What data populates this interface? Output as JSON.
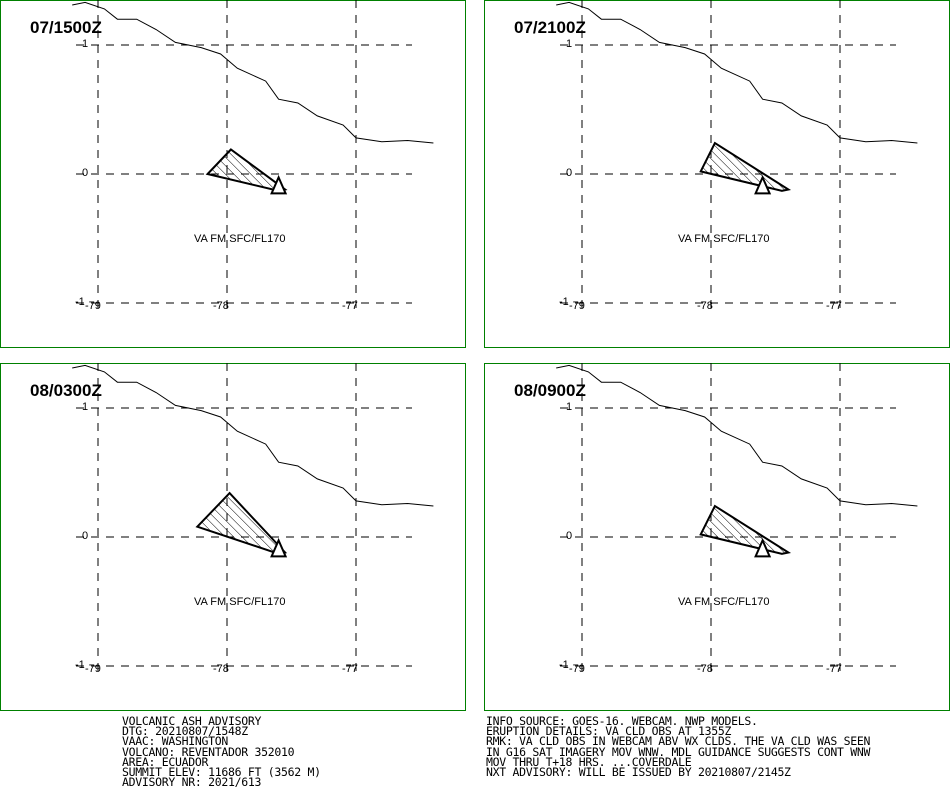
{
  "panels": [
    {
      "time": "07/1500Z",
      "label": "VA FM SFC/FL170"
    },
    {
      "time": "07/2100Z",
      "label": "VA FM SFC/FL170"
    },
    {
      "time": "08/0300Z",
      "label": "VA FM SFC/FL170"
    },
    {
      "time": "08/0900Z",
      "label": "VA FM SFC/FL170"
    }
  ],
  "axes": {
    "x_ticks": [
      "-79",
      "-78",
      "-77"
    ],
    "y_ticks": [
      "1",
      "0",
      "-1"
    ]
  },
  "cloud_polygons": [
    [
      [
        -78.15,
        0.0
      ],
      [
        -77.97,
        0.19
      ],
      [
        -77.55,
        -0.12
      ],
      [
        -77.6,
        -0.13
      ]
    ],
    [
      [
        -78.08,
        0.02
      ],
      [
        -77.97,
        0.24
      ],
      [
        -77.4,
        -0.12
      ],
      [
        -77.45,
        -0.13
      ]
    ],
    [
      [
        -78.23,
        0.08
      ],
      [
        -77.98,
        0.34
      ],
      [
        -77.55,
        -0.12
      ],
      [
        -77.6,
        -0.13
      ]
    ],
    [
      [
        -78.08,
        0.02
      ],
      [
        -77.97,
        0.24
      ],
      [
        -77.4,
        -0.12
      ],
      [
        -77.45,
        -0.13
      ]
    ]
  ],
  "volcano_marker": [
    -77.6,
    -0.08
  ],
  "coastline": [
    [
      -79.2,
      1.31
    ],
    [
      -79.1,
      1.33
    ],
    [
      -78.95,
      1.28
    ],
    [
      -78.85,
      1.2
    ],
    [
      -78.7,
      1.2
    ],
    [
      -78.55,
      1.12
    ],
    [
      -78.4,
      1.02
    ],
    [
      -78.2,
      0.98
    ],
    [
      -78.05,
      0.93
    ],
    [
      -77.92,
      0.82
    ],
    [
      -77.7,
      0.72
    ],
    [
      -77.6,
      0.58
    ],
    [
      -77.45,
      0.55
    ],
    [
      -77.3,
      0.45
    ],
    [
      -77.1,
      0.38
    ],
    [
      -77.0,
      0.28
    ],
    [
      -76.8,
      0.25
    ],
    [
      -76.6,
      0.26
    ],
    [
      -76.4,
      0.24
    ]
  ],
  "footer_left": [
    "VOLCANIC ASH ADVISORY",
    "DTG: 20210807/1548Z",
    "VAAC: WASHINGTON",
    "VOLCANO: REVENTADOR 352010",
    "AREA: ECUADOR",
    "SUMMIT ELEV: 11686 FT (3562 M)",
    "ADVISORY NR: 2021/613"
  ],
  "footer_right": [
    "INFO SOURCE: GOES-16. WEBCAM. NWP MODELS.",
    "ERUPTION DETAILS: VA CLD OBS AT 1355Z",
    "RMK: VA CLD OBS IN WEBCAM ABV WX CLDS. THE VA CLD WAS SEEN",
    "IN G16 SAT IMAGERY MOV WNW. MDL GUIDANCE SUGGESTS CONT WNW",
    "MOV THRU T+18 HRS. ...COVERDALE",
    "NXT ADVISORY: WILL BE ISSUED BY 20210807/2145Z"
  ],
  "colors": {
    "frame": "#008000",
    "ink": "#000000"
  }
}
